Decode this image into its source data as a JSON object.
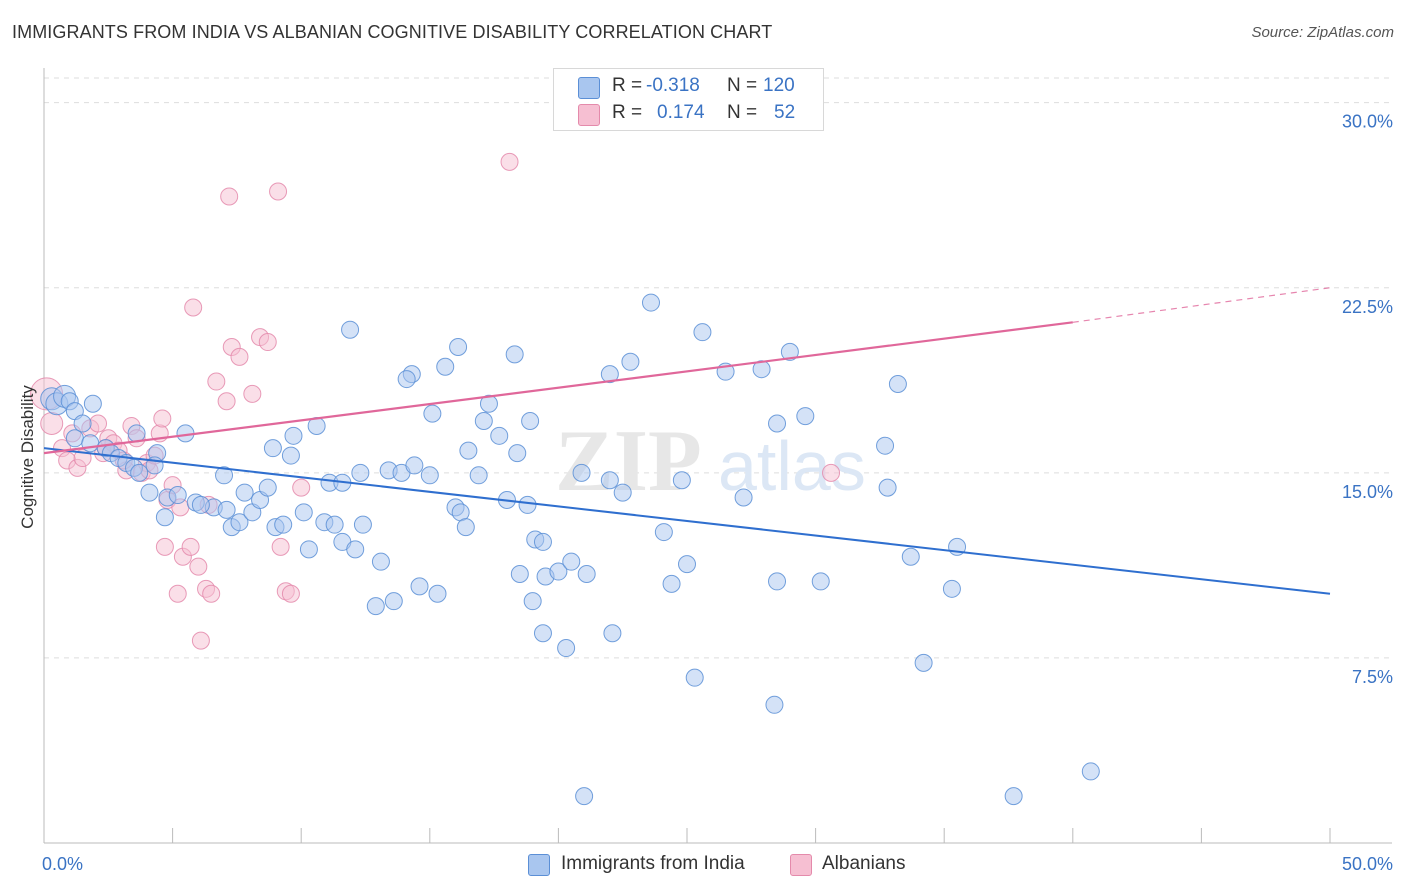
{
  "title": "IMMIGRANTS FROM INDIA VS ALBANIAN COGNITIVE DISABILITY CORRELATION CHART",
  "source": "Source: ZipAtlas.com",
  "watermark": {
    "zip": "ZIP",
    "atlas": "atlas"
  },
  "legend_top": {
    "rows": [
      {
        "r_label": "R =",
        "r_value": "-0.318",
        "n_label": "N =",
        "n_value": "120"
      },
      {
        "r_label": "R =",
        "r_value": "0.174",
        "n_label": "N =",
        "n_value": "52"
      }
    ]
  },
  "colors": {
    "blue_fill": "#a9c6ef",
    "blue_stroke": "#5b8fd6",
    "blue_line": "#2f6fcf",
    "pink_fill": "#f6bfd2",
    "pink_stroke": "#e48aab",
    "pink_line": "#e0679a",
    "axis_text": "#3a73c4",
    "grid": "#dddddd"
  },
  "chart_data": {
    "type": "scatter",
    "title": "IMMIGRANTS FROM INDIA VS ALBANIAN COGNITIVE DISABILITY CORRELATION CHART",
    "xlabel": "",
    "ylabel": "Cognitive Disability",
    "xlim": [
      0,
      50
    ],
    "ylim": [
      0,
      31
    ],
    "x_tick_labels": [
      {
        "value": 0,
        "label": "0.0%"
      },
      {
        "value": 50,
        "label": "50.0%"
      }
    ],
    "y_tick_labels": [
      {
        "value": 7.5,
        "label": "7.5%"
      },
      {
        "value": 15,
        "label": "15.0%"
      },
      {
        "value": 22.5,
        "label": "22.5%"
      },
      {
        "value": 30,
        "label": "30.0%"
      }
    ],
    "legend_position": "bottom-center",
    "series": [
      {
        "name": "Immigrants from India",
        "color": "#a9c6ef",
        "stat_r": "-0.318",
        "stat_n": "120",
        "trend": {
          "x0": 0,
          "y0": 16.0,
          "x1": 50,
          "y1": 10.1
        },
        "points": [
          [
            0.3,
            18.0
          ],
          [
            0.5,
            17.8
          ],
          [
            0.8,
            18.1
          ],
          [
            1.0,
            17.9
          ],
          [
            1.2,
            17.5
          ],
          [
            1.5,
            17.0
          ],
          [
            1.9,
            17.8
          ],
          [
            1.2,
            16.4
          ],
          [
            1.8,
            16.2
          ],
          [
            2.4,
            16.0
          ],
          [
            2.6,
            15.8
          ],
          [
            2.9,
            15.6
          ],
          [
            3.2,
            15.4
          ],
          [
            3.5,
            15.2
          ],
          [
            3.7,
            15.0
          ],
          [
            3.6,
            16.6
          ],
          [
            4.4,
            15.8
          ],
          [
            4.3,
            15.3
          ],
          [
            4.1,
            14.2
          ],
          [
            4.8,
            14.0
          ],
          [
            4.7,
            13.2
          ],
          [
            5.5,
            16.6
          ],
          [
            5.2,
            14.1
          ],
          [
            5.9,
            13.8
          ],
          [
            6.6,
            13.6
          ],
          [
            6.1,
            13.7
          ],
          [
            7.0,
            14.9
          ],
          [
            7.1,
            13.5
          ],
          [
            7.3,
            12.8
          ],
          [
            7.6,
            13.0
          ],
          [
            7.8,
            14.2
          ],
          [
            8.1,
            13.4
          ],
          [
            8.4,
            13.9
          ],
          [
            8.7,
            14.4
          ],
          [
            9.0,
            12.8
          ],
          [
            9.3,
            12.9
          ],
          [
            8.9,
            16.0
          ],
          [
            9.6,
            15.7
          ],
          [
            9.7,
            16.5
          ],
          [
            10.1,
            13.4
          ],
          [
            10.3,
            11.9
          ],
          [
            10.9,
            13.0
          ],
          [
            10.6,
            16.9
          ],
          [
            11.1,
            14.6
          ],
          [
            11.6,
            14.6
          ],
          [
            11.3,
            12.9
          ],
          [
            11.6,
            12.2
          ],
          [
            12.1,
            11.9
          ],
          [
            12.4,
            12.9
          ],
          [
            12.3,
            15.0
          ],
          [
            11.9,
            20.8
          ],
          [
            13.1,
            11.4
          ],
          [
            13.4,
            15.1
          ],
          [
            13.9,
            15.0
          ],
          [
            14.4,
            15.3
          ],
          [
            13.6,
            9.8
          ],
          [
            12.9,
            9.6
          ],
          [
            15.0,
            14.9
          ],
          [
            14.6,
            10.4
          ],
          [
            15.3,
            10.1
          ],
          [
            15.6,
            19.3
          ],
          [
            14.3,
            19.0
          ],
          [
            14.1,
            18.8
          ],
          [
            15.1,
            17.4
          ],
          [
            16.1,
            20.1
          ],
          [
            16.5,
            15.9
          ],
          [
            16.0,
            13.6
          ],
          [
            16.2,
            13.4
          ],
          [
            17.3,
            17.8
          ],
          [
            17.1,
            17.1
          ],
          [
            17.7,
            16.5
          ],
          [
            16.9,
            14.9
          ],
          [
            16.4,
            12.8
          ],
          [
            18.3,
            19.8
          ],
          [
            18.0,
            13.9
          ],
          [
            18.4,
            15.8
          ],
          [
            18.8,
            13.7
          ],
          [
            19.1,
            12.3
          ],
          [
            18.9,
            17.1
          ],
          [
            19.4,
            12.2
          ],
          [
            19.5,
            10.8
          ],
          [
            18.5,
            10.9
          ],
          [
            19.0,
            9.8
          ],
          [
            19.4,
            8.5
          ],
          [
            20.0,
            11.0
          ],
          [
            20.3,
            7.9
          ],
          [
            20.5,
            11.4
          ],
          [
            20.9,
            15.0
          ],
          [
            21.1,
            10.9
          ],
          [
            22.0,
            14.7
          ],
          [
            22.1,
            8.5
          ],
          [
            22.0,
            19.0
          ],
          [
            22.8,
            19.5
          ],
          [
            22.5,
            14.2
          ],
          [
            23.6,
            21.9
          ],
          [
            24.1,
            12.6
          ],
          [
            24.4,
            10.5
          ],
          [
            24.8,
            14.7
          ],
          [
            25.0,
            11.3
          ],
          [
            25.6,
            20.7
          ],
          [
            25.3,
            6.7
          ],
          [
            27.2,
            14.0
          ],
          [
            26.5,
            19.1
          ],
          [
            27.9,
            19.2
          ],
          [
            28.5,
            10.6
          ],
          [
            28.5,
            17.0
          ],
          [
            29.0,
            19.9
          ],
          [
            29.6,
            17.3
          ],
          [
            28.4,
            5.6
          ],
          [
            30.2,
            10.6
          ],
          [
            32.7,
            16.1
          ],
          [
            33.2,
            18.6
          ],
          [
            32.8,
            14.4
          ],
          [
            33.7,
            11.6
          ],
          [
            34.2,
            7.3
          ],
          [
            35.5,
            12.0
          ],
          [
            35.3,
            10.3
          ],
          [
            40.7,
            2.9
          ],
          [
            37.7,
            1.9
          ],
          [
            21.0,
            1.9
          ]
        ]
      },
      {
        "name": "Albanians",
        "color": "#f6bfd2",
        "stat_r": "0.174",
        "stat_n": "52",
        "trend": {
          "x0": 0,
          "y0": 15.8,
          "x1": 40,
          "y1": 21.1,
          "extend_x": 50,
          "extend_y": 22.5
        },
        "points": [
          [
            0.1,
            18.2
          ],
          [
            0.3,
            17.0
          ],
          [
            0.7,
            16.0
          ],
          [
            0.9,
            15.5
          ],
          [
            1.1,
            16.6
          ],
          [
            1.3,
            15.2
          ],
          [
            1.5,
            15.6
          ],
          [
            1.8,
            16.8
          ],
          [
            2.1,
            17.0
          ],
          [
            2.3,
            15.8
          ],
          [
            2.5,
            16.4
          ],
          [
            2.7,
            16.2
          ],
          [
            2.9,
            15.9
          ],
          [
            3.2,
            15.1
          ],
          [
            3.4,
            16.9
          ],
          [
            3.6,
            16.4
          ],
          [
            3.8,
            15.0
          ],
          [
            4.0,
            15.4
          ],
          [
            4.1,
            15.1
          ],
          [
            4.3,
            15.7
          ],
          [
            4.5,
            16.6
          ],
          [
            4.6,
            17.2
          ],
          [
            4.8,
            13.9
          ],
          [
            5.0,
            14.5
          ],
          [
            4.7,
            12.0
          ],
          [
            5.2,
            10.1
          ],
          [
            5.4,
            11.6
          ],
          [
            5.7,
            12.0
          ],
          [
            6.0,
            11.2
          ],
          [
            6.3,
            10.3
          ],
          [
            6.5,
            10.1
          ],
          [
            6.1,
            8.2
          ],
          [
            6.7,
            18.7
          ],
          [
            7.1,
            17.9
          ],
          [
            7.3,
            20.1
          ],
          [
            7.6,
            19.7
          ],
          [
            8.1,
            18.2
          ],
          [
            8.4,
            20.5
          ],
          [
            8.7,
            20.3
          ],
          [
            9.2,
            12.0
          ],
          [
            9.4,
            10.2
          ],
          [
            9.6,
            10.1
          ],
          [
            10.0,
            14.4
          ],
          [
            5.8,
            21.7
          ],
          [
            7.2,
            26.2
          ],
          [
            9.1,
            26.4
          ],
          [
            18.1,
            27.6
          ],
          [
            30.6,
            15.0
          ],
          [
            2.4,
            16.0
          ],
          [
            3.1,
            15.5
          ],
          [
            5.3,
            13.6
          ],
          [
            6.4,
            13.7
          ]
        ]
      }
    ]
  }
}
